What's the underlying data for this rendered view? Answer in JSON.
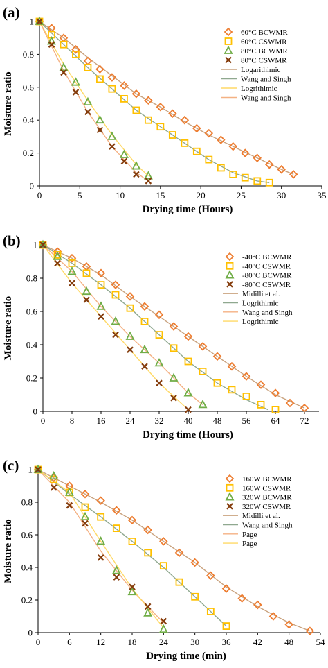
{
  "chart_data": [
    {
      "panel": "(a)",
      "type": "scatter",
      "xlabel": "Drying time (Hours)",
      "ylabel": "Moisture ratio",
      "xlim": [
        0,
        35
      ],
      "ylim": [
        0,
        1
      ],
      "xticks": [
        "0",
        "5",
        "10",
        "15",
        "20",
        "25",
        "30",
        "35"
      ],
      "yticks": [
        "0",
        "0.2",
        "0.4",
        "0.6",
        "0.8",
        "1"
      ],
      "legend_position": "top-right",
      "series": [
        {
          "name": "60°C BCWMR",
          "marker": "diamond",
          "color": "#ED7D31",
          "x": [
            0,
            1.5,
            3,
            4.5,
            6,
            7.5,
            9,
            10.5,
            12,
            13.5,
            15,
            16.5,
            18,
            19.5,
            21,
            22.5,
            24,
            25.5,
            27,
            28.5,
            30,
            31.5
          ],
          "y": [
            1,
            0.96,
            0.9,
            0.83,
            0.76,
            0.71,
            0.66,
            0.61,
            0.56,
            0.52,
            0.48,
            0.44,
            0.4,
            0.35,
            0.32,
            0.28,
            0.24,
            0.2,
            0.17,
            0.13,
            0.1,
            0.07
          ]
        },
        {
          "name": "60°C CSWMR",
          "marker": "square",
          "color": "#FFC000",
          "x": [
            0,
            1.5,
            3,
            4.5,
            6,
            7.5,
            9,
            10.5,
            12,
            13.5,
            15,
            16.5,
            18,
            19.5,
            21,
            22.5,
            24,
            25.5,
            27,
            28.5
          ],
          "y": [
            1,
            0.92,
            0.86,
            0.8,
            0.72,
            0.65,
            0.59,
            0.53,
            0.46,
            0.4,
            0.36,
            0.31,
            0.26,
            0.21,
            0.16,
            0.11,
            0.07,
            0.05,
            0.03,
            0.02
          ]
        },
        {
          "name": "80°C BCWMR",
          "marker": "triangle",
          "color": "#70AD47",
          "x": [
            0,
            1.5,
            3,
            4.5,
            6,
            7.5,
            9,
            10.5,
            12,
            13.5
          ],
          "y": [
            1,
            0.88,
            0.72,
            0.63,
            0.51,
            0.4,
            0.3,
            0.19,
            0.12,
            0.06
          ]
        },
        {
          "name": "80°C CSWMR",
          "marker": "x",
          "color": "#843C0C",
          "x": [
            0,
            1.5,
            3,
            4.5,
            6,
            7.5,
            9,
            10.5,
            12,
            13.5
          ],
          "y": [
            1,
            0.86,
            0.69,
            0.57,
            0.45,
            0.34,
            0.24,
            0.15,
            0.07,
            0.03
          ]
        },
        {
          "name": "Logarithimic",
          "marker": "line",
          "color": "#C9A27E",
          "x": [
            0,
            3,
            6,
            9,
            12,
            15,
            18,
            21,
            24,
            27,
            30,
            31.5
          ],
          "y": [
            1,
            0.9,
            0.78,
            0.67,
            0.56,
            0.48,
            0.39,
            0.31,
            0.24,
            0.17,
            0.1,
            0.07
          ]
        },
        {
          "name": "Wang and Singh",
          "marker": "line",
          "color": "#8FA88F",
          "x": [
            0,
            3,
            6,
            9,
            12,
            15,
            18,
            21,
            24,
            27,
            28.5
          ],
          "y": [
            1,
            0.86,
            0.72,
            0.59,
            0.46,
            0.36,
            0.26,
            0.16,
            0.08,
            0.03,
            0.02
          ]
        },
        {
          "name": "Logrithimic",
          "marker": "line",
          "color": "#FFD966",
          "x": [
            0,
            3,
            6,
            9,
            12,
            13.5
          ],
          "y": [
            1,
            0.74,
            0.52,
            0.31,
            0.13,
            0.06
          ]
        },
        {
          "name": "Wang and Singh",
          "marker": "line",
          "color": "#F4B183",
          "x": [
            0,
            3,
            6,
            9,
            12,
            13.5
          ],
          "y": [
            1,
            0.7,
            0.45,
            0.24,
            0.08,
            0.03
          ]
        }
      ]
    },
    {
      "panel": "(b)",
      "type": "scatter",
      "xlabel": "Drying time (Hours)",
      "ylabel": "Moisture ratio",
      "xlim": [
        0,
        76
      ],
      "ylim": [
        0,
        1
      ],
      "xticks": [
        "0",
        "8",
        "16",
        "24",
        "32",
        "40",
        "48",
        "56",
        "64",
        "72"
      ],
      "yticks": [
        "0",
        "0.2",
        "0.4",
        "0.6",
        "0.8",
        "1"
      ],
      "legend_position": "top-right",
      "series": [
        {
          "name": "-40°C BCWMR",
          "marker": "diamond",
          "color": "#ED7D31",
          "x": [
            0,
            4,
            8,
            12,
            16,
            20,
            24,
            28,
            32,
            36,
            40,
            44,
            48,
            52,
            56,
            60,
            64,
            68,
            72
          ],
          "y": [
            1,
            0.96,
            0.92,
            0.87,
            0.83,
            0.76,
            0.69,
            0.63,
            0.58,
            0.51,
            0.45,
            0.39,
            0.33,
            0.27,
            0.21,
            0.16,
            0.11,
            0.05,
            0.02
          ]
        },
        {
          "name": "-40°C CSWMR",
          "marker": "square",
          "color": "#FFC000",
          "x": [
            0,
            4,
            8,
            12,
            16,
            20,
            24,
            28,
            32,
            36,
            40,
            44,
            48,
            52,
            56,
            60,
            64
          ],
          "y": [
            1,
            0.94,
            0.89,
            0.83,
            0.76,
            0.7,
            0.62,
            0.54,
            0.46,
            0.38,
            0.3,
            0.24,
            0.17,
            0.13,
            0.09,
            0.04,
            0.01
          ]
        },
        {
          "name": "-80°C BCWMR",
          "marker": "triangle",
          "color": "#70AD47",
          "x": [
            0,
            4,
            8,
            12,
            16,
            20,
            24,
            28,
            32,
            36,
            40,
            44
          ],
          "y": [
            1,
            0.93,
            0.84,
            0.72,
            0.63,
            0.54,
            0.45,
            0.37,
            0.29,
            0.2,
            0.11,
            0.04
          ]
        },
        {
          "name": "-80°C CSWMR",
          "marker": "x",
          "color": "#843C0C",
          "x": [
            0,
            4,
            8,
            12,
            16,
            20,
            24,
            28,
            32,
            36,
            40
          ],
          "y": [
            1,
            0.89,
            0.77,
            0.67,
            0.57,
            0.46,
            0.37,
            0.27,
            0.17,
            0.08,
            0.01
          ]
        },
        {
          "name": "Midilli et al.",
          "marker": "line",
          "color": "#C9A27E",
          "x": [
            0,
            8,
            16,
            24,
            32,
            40,
            48,
            56,
            64,
            72
          ],
          "y": [
            1,
            0.92,
            0.82,
            0.69,
            0.57,
            0.45,
            0.33,
            0.21,
            0.1,
            0.02
          ]
        },
        {
          "name": "Logrithimic",
          "marker": "line",
          "color": "#8FA88F",
          "x": [
            0,
            8,
            16,
            24,
            32,
            40,
            48,
            56,
            62
          ],
          "y": [
            1,
            0.89,
            0.76,
            0.62,
            0.46,
            0.3,
            0.17,
            0.07,
            0.01
          ]
        },
        {
          "name": "Wang and Singh",
          "marker": "line",
          "color": "#F4B183",
          "x": [
            0,
            8,
            16,
            24,
            32,
            40,
            44
          ],
          "y": [
            1,
            0.84,
            0.63,
            0.45,
            0.29,
            0.11,
            0.04
          ]
        },
        {
          "name": "Logrithimic",
          "marker": "line",
          "color": "#FFD966",
          "x": [
            0,
            8,
            16,
            24,
            32,
            40
          ],
          "y": [
            1,
            0.77,
            0.57,
            0.37,
            0.17,
            0.01
          ]
        }
      ]
    },
    {
      "panel": "(c)",
      "type": "scatter",
      "xlabel": "Drying time (min)",
      "ylabel": "Moisture ratio",
      "xlim": [
        0,
        54
      ],
      "ylim": [
        0,
        1
      ],
      "xticks": [
        "0",
        "6",
        "12",
        "18",
        "24",
        "30",
        "36",
        "42",
        "48",
        "54"
      ],
      "yticks": [
        "0",
        "0.2",
        "0.4",
        "0.6",
        "0.8",
        "1"
      ],
      "legend_position": "top-right",
      "series": [
        {
          "name": "160W BCWMR",
          "marker": "diamond",
          "color": "#ED7D31",
          "x": [
            0,
            3,
            6,
            9,
            12,
            15,
            18,
            21,
            24,
            27,
            30,
            33,
            36,
            39,
            42,
            45,
            48,
            52
          ],
          "y": [
            1,
            0.95,
            0.9,
            0.85,
            0.81,
            0.75,
            0.69,
            0.63,
            0.56,
            0.49,
            0.43,
            0.35,
            0.27,
            0.21,
            0.17,
            0.1,
            0.05,
            0.01
          ]
        },
        {
          "name": "160W CSWMR",
          "marker": "square",
          "color": "#FFC000",
          "x": [
            0,
            3,
            6,
            9,
            12,
            15,
            18,
            21,
            24,
            27,
            30,
            33,
            36
          ],
          "y": [
            1,
            0.94,
            0.86,
            0.77,
            0.71,
            0.64,
            0.56,
            0.49,
            0.41,
            0.31,
            0.22,
            0.13,
            0.04
          ]
        },
        {
          "name": "320W BCWMR",
          "marker": "triangle",
          "color": "#70AD47",
          "x": [
            0,
            3,
            6,
            9,
            12,
            15,
            18,
            21,
            24
          ],
          "y": [
            1,
            0.96,
            0.86,
            0.71,
            0.56,
            0.38,
            0.25,
            0.12,
            0.02
          ]
        },
        {
          "name": "320W CSWMR",
          "marker": "x",
          "color": "#843C0C",
          "x": [
            0,
            3,
            6,
            9,
            12,
            15,
            18,
            21,
            24
          ],
          "y": [
            1,
            0.89,
            0.78,
            0.67,
            0.46,
            0.34,
            0.28,
            0.16,
            0.07
          ]
        },
        {
          "name": "Midilli et al.",
          "marker": "line",
          "color": "#C9A27E",
          "x": [
            0,
            6,
            12,
            18,
            24,
            30,
            36,
            42,
            48,
            52
          ],
          "y": [
            1,
            0.9,
            0.8,
            0.69,
            0.56,
            0.43,
            0.28,
            0.16,
            0.06,
            0.01
          ]
        },
        {
          "name": "Wang and Singh",
          "marker": "line",
          "color": "#8FA88F",
          "x": [
            0,
            6,
            12,
            18,
            24,
            30,
            36
          ],
          "y": [
            1,
            0.85,
            0.71,
            0.56,
            0.4,
            0.22,
            0.04
          ]
        },
        {
          "name": "Page",
          "marker": "line",
          "color": "#F4B183",
          "x": [
            0,
            6,
            12,
            18,
            24
          ],
          "y": [
            1,
            0.8,
            0.5,
            0.26,
            0.06
          ]
        },
        {
          "name": "Page",
          "marker": "line",
          "color": "#FFD966",
          "x": [
            0,
            6,
            12,
            18,
            24
          ],
          "y": [
            1,
            0.86,
            0.56,
            0.27,
            0.03
          ]
        }
      ]
    }
  ]
}
